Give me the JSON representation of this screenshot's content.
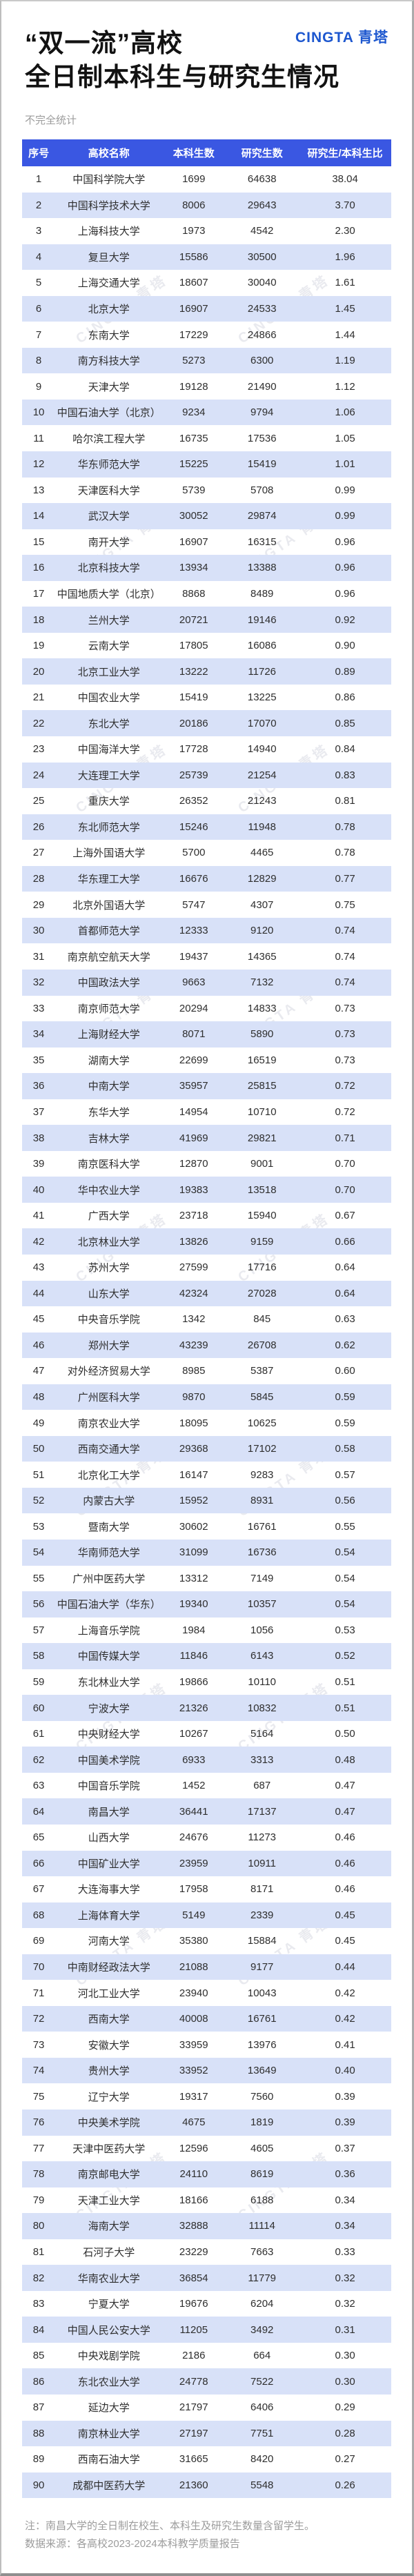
{
  "header": {
    "title_line1": "“双一流”高校",
    "title_line2": "全日制本科生与研究生情况",
    "logo": "CINGTA 青塔",
    "note": "不完全统计"
  },
  "colors": {
    "header_bg": "#3a57e2",
    "alt_row_bg": "#d8e1f8",
    "logo_blue": "#1d57cf"
  },
  "watermark": {
    "text": "CINGTA 青塔"
  },
  "table": {
    "columns": [
      "序号",
      "高校名称",
      "本科生数",
      "研究生数",
      "研究生/本科生比"
    ],
    "rows": [
      [
        "1",
        "中国科学院大学",
        "1699",
        "64638",
        "38.04"
      ],
      [
        "2",
        "中国科学技术大学",
        "8006",
        "29643",
        "3.70"
      ],
      [
        "3",
        "上海科技大学",
        "1973",
        "4542",
        "2.30"
      ],
      [
        "4",
        "复旦大学",
        "15586",
        "30500",
        "1.96"
      ],
      [
        "5",
        "上海交通大学",
        "18607",
        "30040",
        "1.61"
      ],
      [
        "6",
        "北京大学",
        "16907",
        "24533",
        "1.45"
      ],
      [
        "7",
        "东南大学",
        "17229",
        "24866",
        "1.44"
      ],
      [
        "8",
        "南方科技大学",
        "5273",
        "6300",
        "1.19"
      ],
      [
        "9",
        "天津大学",
        "19128",
        "21490",
        "1.12"
      ],
      [
        "10",
        "中国石油大学（北京）",
        "9234",
        "9794",
        "1.06"
      ],
      [
        "11",
        "哈尔滨工程大学",
        "16735",
        "17536",
        "1.05"
      ],
      [
        "12",
        "华东师范大学",
        "15225",
        "15419",
        "1.01"
      ],
      [
        "13",
        "天津医科大学",
        "5739",
        "5708",
        "0.99"
      ],
      [
        "14",
        "武汉大学",
        "30052",
        "29874",
        "0.99"
      ],
      [
        "15",
        "南开大学",
        "16907",
        "16315",
        "0.96"
      ],
      [
        "16",
        "北京科技大学",
        "13934",
        "13388",
        "0.96"
      ],
      [
        "17",
        "中国地质大学（北京）",
        "8868",
        "8489",
        "0.96"
      ],
      [
        "18",
        "兰州大学",
        "20721",
        "19146",
        "0.92"
      ],
      [
        "19",
        "云南大学",
        "17805",
        "16086",
        "0.90"
      ],
      [
        "20",
        "北京工业大学",
        "13222",
        "11726",
        "0.89"
      ],
      [
        "21",
        "中国农业大学",
        "15419",
        "13225",
        "0.86"
      ],
      [
        "22",
        "东北大学",
        "20186",
        "17070",
        "0.85"
      ],
      [
        "23",
        "中国海洋大学",
        "17728",
        "14940",
        "0.84"
      ],
      [
        "24",
        "大连理工大学",
        "25739",
        "21254",
        "0.83"
      ],
      [
        "25",
        "重庆大学",
        "26352",
        "21243",
        "0.81"
      ],
      [
        "26",
        "东北师范大学",
        "15246",
        "11948",
        "0.78"
      ],
      [
        "27",
        "上海外国语大学",
        "5700",
        "4465",
        "0.78"
      ],
      [
        "28",
        "华东理工大学",
        "16676",
        "12829",
        "0.77"
      ],
      [
        "29",
        "北京外国语大学",
        "5747",
        "4307",
        "0.75"
      ],
      [
        "30",
        "首都师范大学",
        "12333",
        "9120",
        "0.74"
      ],
      [
        "31",
        "南京航空航天大学",
        "19437",
        "14365",
        "0.74"
      ],
      [
        "32",
        "中国政法大学",
        "9663",
        "7132",
        "0.74"
      ],
      [
        "33",
        "南京师范大学",
        "20294",
        "14833",
        "0.73"
      ],
      [
        "34",
        "上海财经大学",
        "8071",
        "5890",
        "0.73"
      ],
      [
        "35",
        "湖南大学",
        "22699",
        "16519",
        "0.73"
      ],
      [
        "36",
        "中南大学",
        "35957",
        "25815",
        "0.72"
      ],
      [
        "37",
        "东华大学",
        "14954",
        "10710",
        "0.72"
      ],
      [
        "38",
        "吉林大学",
        "41969",
        "29821",
        "0.71"
      ],
      [
        "39",
        "南京医科大学",
        "12870",
        "9001",
        "0.70"
      ],
      [
        "40",
        "华中农业大学",
        "19383",
        "13518",
        "0.70"
      ],
      [
        "41",
        "广西大学",
        "23718",
        "15940",
        "0.67"
      ],
      [
        "42",
        "北京林业大学",
        "13826",
        "9159",
        "0.66"
      ],
      [
        "43",
        "苏州大学",
        "27599",
        "17716",
        "0.64"
      ],
      [
        "44",
        "山东大学",
        "42324",
        "27028",
        "0.64"
      ],
      [
        "45",
        "中央音乐学院",
        "1342",
        "845",
        "0.63"
      ],
      [
        "46",
        "郑州大学",
        "43239",
        "26708",
        "0.62"
      ],
      [
        "47",
        "对外经济贸易大学",
        "8985",
        "5387",
        "0.60"
      ],
      [
        "48",
        "广州医科大学",
        "9870",
        "5845",
        "0.59"
      ],
      [
        "49",
        "南京农业大学",
        "18095",
        "10625",
        "0.59"
      ],
      [
        "50",
        "西南交通大学",
        "29368",
        "17102",
        "0.58"
      ],
      [
        "51",
        "北京化工大学",
        "16147",
        "9283",
        "0.57"
      ],
      [
        "52",
        "内蒙古大学",
        "15952",
        "8931",
        "0.56"
      ],
      [
        "53",
        "暨南大学",
        "30602",
        "16761",
        "0.55"
      ],
      [
        "54",
        "华南师范大学",
        "31099",
        "16736",
        "0.54"
      ],
      [
        "55",
        "广州中医药大学",
        "13312",
        "7149",
        "0.54"
      ],
      [
        "56",
        "中国石油大学（华东）",
        "19340",
        "10357",
        "0.54"
      ],
      [
        "57",
        "上海音乐学院",
        "1984",
        "1056",
        "0.53"
      ],
      [
        "58",
        "中国传媒大学",
        "11846",
        "6143",
        "0.52"
      ],
      [
        "59",
        "东北林业大学",
        "19866",
        "10110",
        "0.51"
      ],
      [
        "60",
        "宁波大学",
        "21326",
        "10832",
        "0.51"
      ],
      [
        "61",
        "中央财经大学",
        "10267",
        "5164",
        "0.50"
      ],
      [
        "62",
        "中国美术学院",
        "6933",
        "3313",
        "0.48"
      ],
      [
        "63",
        "中国音乐学院",
        "1452",
        "687",
        "0.47"
      ],
      [
        "64",
        "南昌大学",
        "36441",
        "17137",
        "0.47"
      ],
      [
        "65",
        "山西大学",
        "24676",
        "11273",
        "0.46"
      ],
      [
        "66",
        "中国矿业大学",
        "23959",
        "10911",
        "0.46"
      ],
      [
        "67",
        "大连海事大学",
        "17958",
        "8171",
        "0.46"
      ],
      [
        "68",
        "上海体育大学",
        "5149",
        "2339",
        "0.45"
      ],
      [
        "69",
        "河南大学",
        "35380",
        "15884",
        "0.45"
      ],
      [
        "70",
        "中南财经政法大学",
        "21088",
        "9177",
        "0.44"
      ],
      [
        "71",
        "河北工业大学",
        "23940",
        "10043",
        "0.42"
      ],
      [
        "72",
        "西南大学",
        "40008",
        "16761",
        "0.42"
      ],
      [
        "73",
        "安徽大学",
        "33959",
        "13976",
        "0.41"
      ],
      [
        "74",
        "贵州大学",
        "33952",
        "13649",
        "0.40"
      ],
      [
        "75",
        "辽宁大学",
        "19317",
        "7560",
        "0.39"
      ],
      [
        "76",
        "中央美术学院",
        "4675",
        "1819",
        "0.39"
      ],
      [
        "77",
        "天津中医药大学",
        "12596",
        "4605",
        "0.37"
      ],
      [
        "78",
        "南京邮电大学",
        "24110",
        "8619",
        "0.36"
      ],
      [
        "79",
        "天津工业大学",
        "18166",
        "6188",
        "0.34"
      ],
      [
        "80",
        "海南大学",
        "32888",
        "11114",
        "0.34"
      ],
      [
        "81",
        "石河子大学",
        "23229",
        "7663",
        "0.33"
      ],
      [
        "82",
        "华南农业大学",
        "36854",
        "11779",
        "0.32"
      ],
      [
        "83",
        "宁夏大学",
        "19676",
        "6204",
        "0.32"
      ],
      [
        "84",
        "中国人民公安大学",
        "11205",
        "3492",
        "0.31"
      ],
      [
        "85",
        "中央戏剧学院",
        "2186",
        "664",
        "0.30"
      ],
      [
        "86",
        "东北农业大学",
        "24778",
        "7522",
        "0.30"
      ],
      [
        "87",
        "延边大学",
        "21797",
        "6406",
        "0.29"
      ],
      [
        "88",
        "南京林业大学",
        "27197",
        "7751",
        "0.28"
      ],
      [
        "89",
        "西南石油大学",
        "31665",
        "8420",
        "0.27"
      ],
      [
        "90",
        "成都中医药大学",
        "21360",
        "5548",
        "0.26"
      ]
    ]
  },
  "footer": {
    "note1": "注：南昌大学的全日制在校生、本科生及研究生数量含留学生。",
    "note2": "数据来源：各高校2023-2024本科教学质量报告"
  }
}
